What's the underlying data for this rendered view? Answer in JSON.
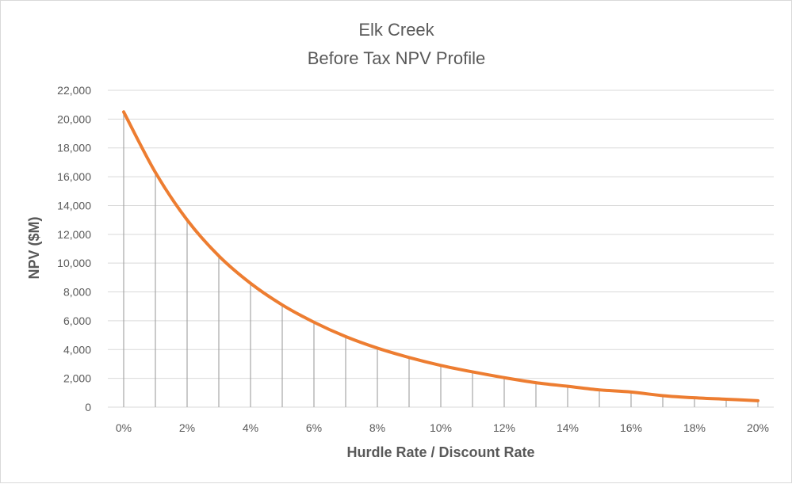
{
  "chart_data": {
    "type": "line",
    "title_line1": "Elk Creek",
    "title_line2": "Before Tax NPV Profile",
    "xlabel": "Hurdle Rate / Discount Rate",
    "ylabel": "NPV ($M)",
    "x": [
      0,
      1,
      2,
      3,
      4,
      5,
      6,
      7,
      8,
      9,
      10,
      11,
      12,
      13,
      14,
      15,
      16,
      17,
      18,
      19,
      20
    ],
    "x_tick_labels": [
      "0%",
      "2%",
      "4%",
      "6%",
      "8%",
      "10%",
      "12%",
      "14%",
      "16%",
      "18%",
      "20%"
    ],
    "x_tick_values": [
      0,
      2,
      4,
      6,
      8,
      10,
      12,
      14,
      16,
      18,
      20
    ],
    "y_tick_labels": [
      "0",
      "2,000",
      "4,000",
      "6,000",
      "8,000",
      "10,000",
      "12,000",
      "14,000",
      "16,000",
      "18,000",
      "20,000",
      "22,000"
    ],
    "y_tick_values": [
      0,
      2000,
      4000,
      6000,
      8000,
      10000,
      12000,
      14000,
      16000,
      18000,
      20000,
      22000
    ],
    "ylim": [
      0,
      22000
    ],
    "xlim": [
      0,
      20
    ],
    "grid": "horizontal",
    "drop_lines": true,
    "series": [
      {
        "values": [
          20500,
          16300,
          13000,
          10500,
          8600,
          7100,
          5900,
          4900,
          4100,
          3450,
          2900,
          2450,
          2050,
          1700,
          1450,
          1200,
          1050,
          800,
          650,
          550,
          450
        ],
        "color": "#ED7D31"
      }
    ],
    "gridline_color": "#d9d9d9",
    "dropline_color": "#a6a6a6"
  }
}
